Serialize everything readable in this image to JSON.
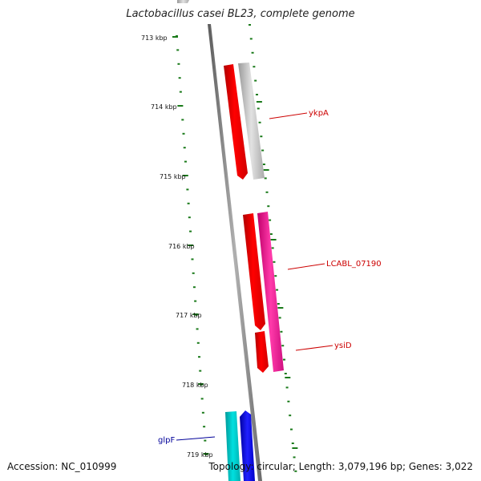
{
  "title": "Lactobacillus casei BL23, complete genome",
  "footer": {
    "accession": "Accession: NC_010999",
    "summary": "Topology: circular; Length: 3,079,196 bp; Genes: 3,022"
  },
  "colors": {
    "tick": "#1a7a1a",
    "backbone": "#808080",
    "gene_red": "#ff0000",
    "gene_gray": "#c0c0c0",
    "gene_pink": "#ff2aa0",
    "gene_cyan": "#00c8c8",
    "gene_blue": "#0000ff",
    "label_red": "#cc0000",
    "label_blue": "#000099"
  },
  "ticks": [
    {
      "label": "713 kbp"
    },
    {
      "label": "714 kbp"
    },
    {
      "label": "715 kbp"
    },
    {
      "label": "716 kbp"
    },
    {
      "label": "717 kbp"
    },
    {
      "label": "718 kbp"
    },
    {
      "label": "719 kbp"
    }
  ],
  "gene_labels": [
    {
      "name": "ykpA"
    },
    {
      "name": "LCABL_07190"
    },
    {
      "name": "ysiD"
    },
    {
      "name": "glpF"
    }
  ]
}
